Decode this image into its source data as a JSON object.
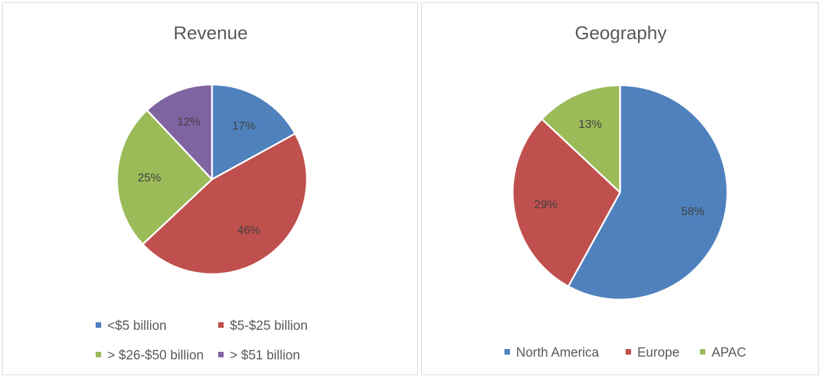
{
  "chart_data": [
    {
      "type": "pie",
      "title": "Revenue",
      "categories": [
        "<$5 billion",
        "$5-$25 billion",
        "> $26-$50 billion",
        "> $51 billion"
      ],
      "values": [
        17,
        46,
        25,
        12
      ],
      "labels": [
        "17%",
        "46%",
        "25%",
        "12%"
      ],
      "colors": [
        "#4f81bd",
        "#c0504d",
        "#9bbb59",
        "#8064a2"
      ],
      "legend": "bottom"
    },
    {
      "type": "pie",
      "title": "Geography",
      "categories": [
        "North America",
        "Europe",
        "APAC"
      ],
      "values": [
        58,
        29,
        13
      ],
      "labels": [
        "58%",
        "29%",
        "13%"
      ],
      "colors": [
        "#4f81bd",
        "#c0504d",
        "#9bbb59"
      ],
      "legend": "bottom"
    }
  ]
}
